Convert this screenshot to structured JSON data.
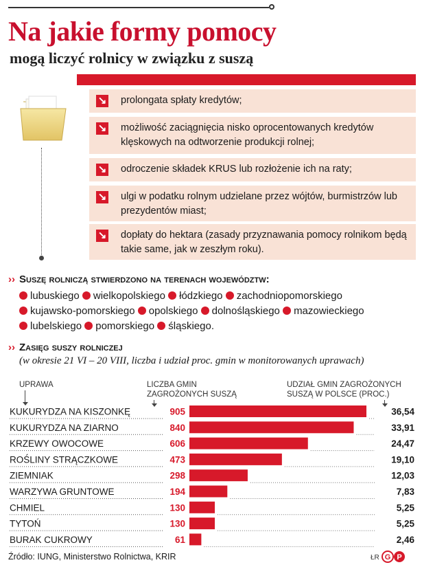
{
  "header": {
    "title": "Na jakie formy pomocy",
    "subtitle": "mogą liczyć rolnicy w związku z suszą"
  },
  "icons": {
    "folder": "folder-icon",
    "arrow": "arrow-down-right-icon"
  },
  "help_forms": [
    "prolongata spłaty kredytów;",
    "możliwość zaciągnięcia nisko oprocentowanych kredytów klęskowych na odtworzenie produkcji rolnej;",
    "odroczenie składek KRUS lub rozłożenie ich na raty;",
    "ulgi w podatku rolnym udzielane przez wójtów, burmistrzów lub prezydentów miast;",
    "dopłaty do hektara (zasady przyznawania pomocy rolnikom będą takie same, jak w zeszłym roku)."
  ],
  "regions_section": {
    "heading_first": "S",
    "heading_rest": "uszę rolniczą stwierdzono na terenach województw:",
    "regions": [
      "lubuskiego",
      "wielkopolskiego",
      "łódzkiego",
      "zachodniopomorskiego",
      "kujawsko-pomorskiego",
      "opolskiego",
      "dolnośląskiego",
      "mazowieckiego",
      "lubelskiego",
      "pomorskiego",
      "śląskiego."
    ]
  },
  "range_section": {
    "heading_first": "Z",
    "heading_rest": "asięg suszy rolniczej",
    "subheading": "(w okresie 21 VI – 20 VIII, liczba i udział proc. gmin w monitorowanych uprawach)",
    "col_crop": "UPRAWA",
    "col_count_line1": "LICZBA GMIN",
    "col_count_line2": "ZAGROŻONYCH SUSZĄ",
    "col_share_line1": "UDZIAŁ GMIN ZAGROŻONYCH",
    "col_share_line2": "SUSZĄ W POLSCE (PROC.)"
  },
  "chart_data": {
    "type": "bar",
    "categories": [
      "KUKURYDZA NA KISZONKĘ",
      "KUKURYDZA NA ZIARNO",
      "KRZEWY OWOCOWE",
      "ROŚLINY STRĄCZKOWE",
      "ZIEMNIAK",
      "WARZYWA GRUNTOWE",
      "CHMIEL",
      "TYTOŃ",
      "BURAK CUKROWY"
    ],
    "series": [
      {
        "name": "LICZBA GMIN ZAGROŻONYCH SUSZĄ",
        "values": [
          905,
          840,
          606,
          473,
          298,
          194,
          130,
          130,
          61
        ]
      },
      {
        "name": "UDZIAŁ GMIN ZAGROŻONYCH SUSZĄ W POLSCE (PROC.)",
        "values": [
          "36,54",
          "33,91",
          "24,47",
          "19,10",
          "12,03",
          "7,83",
          "5,25",
          "5,25",
          "2,46"
        ]
      }
    ],
    "bar_color": "#d7192a",
    "count_color": "#d7192a"
  },
  "footer": {
    "source": "Źródło: IUNG, Ministerstwo Rolnictwa, KRIR",
    "signature": "ŁR",
    "logo_text": "GP"
  }
}
